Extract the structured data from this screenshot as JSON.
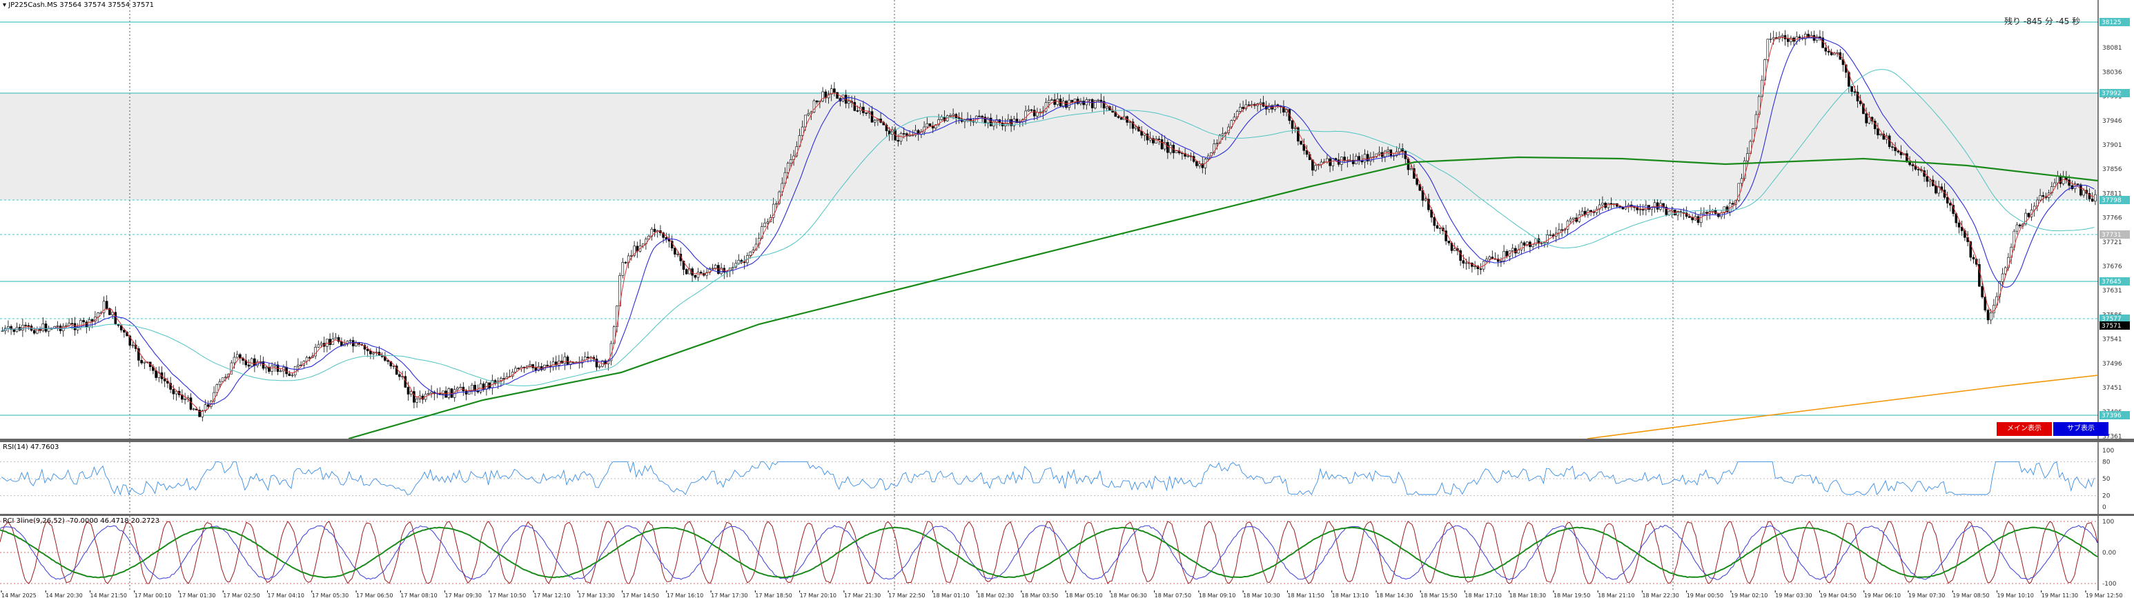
{
  "main": {
    "title": "JP225Cash.MS  37564 37574 37554 37571",
    "countdown": "残り -845 分 -45 秒",
    "y_ticks": [
      "38124",
      "38081",
      "38036",
      "37991",
      "37946",
      "37901",
      "37856",
      "37811",
      "37766",
      "37721",
      "37676",
      "37631",
      "37586",
      "37541",
      "37496",
      "37451",
      "37406",
      "37361"
    ],
    "price_tags": [
      "38125",
      "37992",
      "37798",
      "37731",
      "37645",
      "37577",
      "37571",
      "37396"
    ],
    "buttons": {
      "main_view": "メイン表示",
      "sub_view": "サブ表示"
    },
    "colors": {
      "main_btn": "#e00000",
      "sub_btn": "#0000dd",
      "line_cyan": "#4fc3c3",
      "ma200": "#1a8a1a",
      "ma_orange": "#f29400",
      "ma_fast": "#e03030",
      "ma_mid": "#2b2bd8"
    }
  },
  "rsi": {
    "title": "RSI(14) 47.7603",
    "y_ticks": [
      "100",
      "80",
      "50",
      "20",
      "0"
    ]
  },
  "rci": {
    "title": "RCI 3line(9,26,52) -70.0000 46.4718 20.2723",
    "y_ticks": [
      "100",
      "0.00",
      "-100"
    ]
  },
  "xaxis": {
    "labels": [
      "14 Mar 2025",
      "14 Mar 20:30",
      "14 Mar 21:50",
      "17 Mar 00:10",
      "17 Mar 01:30",
      "17 Mar 02:50",
      "17 Mar 04:10",
      "17 Mar 05:30",
      "17 Mar 06:50",
      "17 Mar 08:10",
      "17 Mar 09:30",
      "17 Mar 10:50",
      "17 Mar 12:10",
      "17 Mar 13:30",
      "17 Mar 14:50",
      "17 Mar 16:10",
      "17 Mar 17:30",
      "17 Mar 18:50",
      "17 Mar 20:10",
      "17 Mar 21:30",
      "17 Mar 22:50",
      "18 Mar 01:10",
      "18 Mar 02:30",
      "18 Mar 03:50",
      "18 Mar 05:10",
      "18 Mar 06:30",
      "18 Mar 07:50",
      "18 Mar 09:10",
      "18 Mar 10:30",
      "18 Mar 11:50",
      "18 Mar 13:10",
      "18 Mar 14:30",
      "18 Mar 15:50",
      "18 Mar 17:10",
      "18 Mar 18:30",
      "18 Mar 19:50",
      "18 Mar 21:10",
      "18 Mar 22:30",
      "19 Mar 00:50",
      "19 Mar 02:10",
      "19 Mar 03:30",
      "19 Mar 04:50",
      "19 Mar 06:10",
      "19 Mar 07:30",
      "19 Mar 08:50",
      "19 Mar 10:10",
      "19 Mar 11:30",
      "19 Mar 12:50"
    ]
  }
}
